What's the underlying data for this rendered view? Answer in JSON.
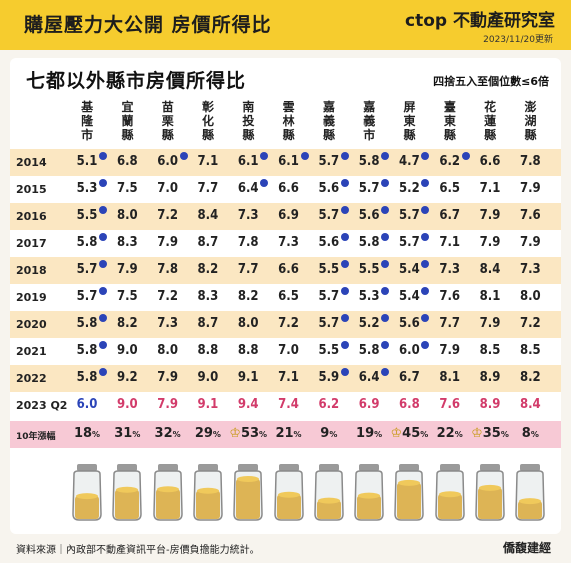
{
  "header": {
    "title": "購屋壓力大公開 房價所得比",
    "brand": "ctop 不動產研究室",
    "updated": "2023/11/20更新"
  },
  "chart_subtitle": "七都以外縣市房價所得比",
  "note": "四捨五入至個位數≤6倍",
  "chart_data": {
    "type": "table",
    "title": "七都以外縣市房價所得比",
    "columns": [
      "基隆市",
      "宜蘭縣",
      "苗栗縣",
      "彰化縣",
      "南投縣",
      "雲林縣",
      "嘉義縣",
      "嘉義市",
      "屏東縣",
      "臺東縣",
      "花蓮縣",
      "澎湖縣"
    ],
    "rows": [
      {
        "year": "2014",
        "values": [
          5.1,
          6.8,
          6.0,
          7.1,
          6.1,
          6.1,
          5.7,
          5.8,
          4.7,
          6.2,
          6.6,
          7.8
        ]
      },
      {
        "year": "2015",
        "values": [
          5.3,
          7.5,
          7.0,
          7.7,
          6.4,
          6.6,
          5.6,
          5.7,
          5.2,
          6.5,
          7.1,
          7.9
        ]
      },
      {
        "year": "2016",
        "values": [
          5.5,
          8.0,
          7.2,
          8.4,
          7.3,
          6.9,
          5.7,
          5.6,
          5.7,
          6.7,
          7.9,
          7.6
        ]
      },
      {
        "year": "2017",
        "values": [
          5.8,
          8.3,
          7.9,
          8.7,
          7.8,
          7.3,
          5.6,
          5.8,
          5.7,
          7.1,
          7.9,
          7.9
        ]
      },
      {
        "year": "2018",
        "values": [
          5.7,
          7.9,
          7.8,
          8.2,
          7.7,
          6.6,
          5.5,
          5.5,
          5.4,
          7.3,
          8.4,
          7.3
        ]
      },
      {
        "year": "2019",
        "values": [
          5.7,
          7.5,
          7.2,
          8.3,
          8.2,
          6.5,
          5.7,
          5.3,
          5.4,
          7.6,
          8.1,
          8.0
        ]
      },
      {
        "year": "2020",
        "values": [
          5.8,
          8.2,
          7.3,
          8.7,
          8.0,
          7.2,
          5.7,
          5.2,
          5.6,
          7.7,
          7.9,
          7.2
        ]
      },
      {
        "year": "2021",
        "values": [
          5.8,
          9.0,
          8.0,
          8.8,
          8.8,
          7.0,
          5.5,
          5.8,
          6.0,
          7.9,
          8.5,
          8.5
        ]
      },
      {
        "year": "2022",
        "values": [
          5.8,
          9.2,
          7.9,
          9.0,
          9.1,
          7.1,
          5.9,
          6.4,
          6.7,
          8.1,
          8.9,
          8.2
        ]
      },
      {
        "year": "2023 Q2",
        "values": [
          6.0,
          9.0,
          7.9,
          9.1,
          9.4,
          7.4,
          6.2,
          6.9,
          6.8,
          7.6,
          8.9,
          8.4
        ]
      }
    ],
    "growth_label": "10年漲幅",
    "growth_pct": [
      18,
      31,
      32,
      29,
      53,
      21,
      9,
      19,
      45,
      22,
      35,
      8
    ],
    "growth_unit": "%",
    "crowned": [
      4,
      8,
      10
    ],
    "threshold": 6,
    "marker_color": "#2b44b8",
    "blue_text": "#2b44b8",
    "red_text": "#d23b6a"
  },
  "footer": {
    "source": "資料來源｜內政部不動產資訊平台-房價負擔能力統計。",
    "logo": "僑馥建經"
  },
  "colors": {
    "topbar": "#f6cc2e",
    "band": "#fbe7c2",
    "growth_band": "#f7c9d5"
  }
}
